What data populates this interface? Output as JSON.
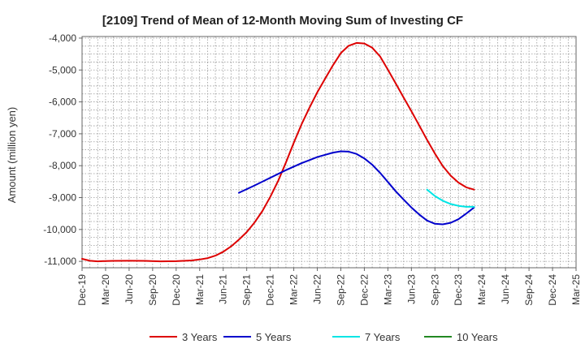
{
  "chart_data": {
    "type": "line",
    "title": "[2109]  Trend of Mean of 12-Month Moving Sum of Investing CF",
    "xlabel": "",
    "ylabel": "Amount (million yen)",
    "ylim": [
      -11200,
      -3950
    ],
    "yticks": [
      -4000,
      -5000,
      -6000,
      -7000,
      -8000,
      -9000,
      -10000,
      -11000
    ],
    "ytick_labels": [
      "-4,000",
      "-5,000",
      "-6,000",
      "-7,000",
      "-8,000",
      "-9,000",
      "-10,000",
      "-11,000"
    ],
    "xtick_labels": [
      "Dec-19",
      "Mar-20",
      "Jun-20",
      "Sep-20",
      "Dec-20",
      "Mar-21",
      "Jun-21",
      "Sep-21",
      "Dec-21",
      "Mar-22",
      "Jun-22",
      "Sep-22",
      "Dec-22",
      "Mar-23",
      "Jun-23",
      "Sep-23",
      "Dec-23",
      "Mar-24",
      "Jun-24",
      "Sep-24",
      "Dec-24",
      "Mar-25"
    ],
    "x_note": "x values are month indices counted from Dec-19 (0) to Mar-25 (63)",
    "x_range": [
      0,
      63
    ],
    "grid": true,
    "legend_position": "bottom",
    "series": [
      {
        "name": "3 Years",
        "color": "#dd0000",
        "x": [
          0,
          1,
          2,
          3,
          4,
          6,
          8,
          10,
          12,
          14,
          15,
          16,
          17,
          18,
          19,
          20,
          21,
          22,
          23,
          24,
          25,
          26,
          27,
          28,
          29,
          30,
          31,
          32,
          33,
          34,
          35,
          36,
          37,
          38,
          39,
          40,
          41,
          42,
          43,
          44,
          45,
          46,
          47,
          48,
          49,
          50
        ],
        "y": [
          -10920,
          -10980,
          -11000,
          -10990,
          -10985,
          -10980,
          -10985,
          -11000,
          -10995,
          -10970,
          -10940,
          -10900,
          -10820,
          -10700,
          -10530,
          -10320,
          -10080,
          -9780,
          -9420,
          -8980,
          -8480,
          -7900,
          -7280,
          -6700,
          -6180,
          -5700,
          -5270,
          -4850,
          -4470,
          -4240,
          -4150,
          -4170,
          -4300,
          -4570,
          -4990,
          -5420,
          -5860,
          -6290,
          -6740,
          -7190,
          -7620,
          -8010,
          -8310,
          -8530,
          -8680,
          -8750
        ]
      },
      {
        "name": "5 Years",
        "color": "#0000cc",
        "x": [
          20,
          22,
          24,
          26,
          28,
          30,
          31,
          32,
          33,
          34,
          35,
          36,
          37,
          38,
          39,
          40,
          41,
          42,
          43,
          44,
          45,
          46,
          47,
          48,
          49,
          50
        ],
        "y": [
          -8850,
          -8620,
          -8380,
          -8140,
          -7920,
          -7730,
          -7660,
          -7590,
          -7550,
          -7560,
          -7630,
          -7770,
          -7970,
          -8220,
          -8510,
          -8800,
          -9060,
          -9310,
          -9530,
          -9720,
          -9820,
          -9840,
          -9790,
          -9680,
          -9500,
          -9310
        ]
      },
      {
        "name": "7 Years",
        "color": "#00e5e5",
        "x": [
          44,
          45,
          46,
          47,
          48,
          49,
          50
        ],
        "y": [
          -8750,
          -8950,
          -9100,
          -9200,
          -9260,
          -9290,
          -9290
        ]
      },
      {
        "name": "10 Years",
        "color": "#228822",
        "x": [],
        "y": []
      }
    ]
  }
}
